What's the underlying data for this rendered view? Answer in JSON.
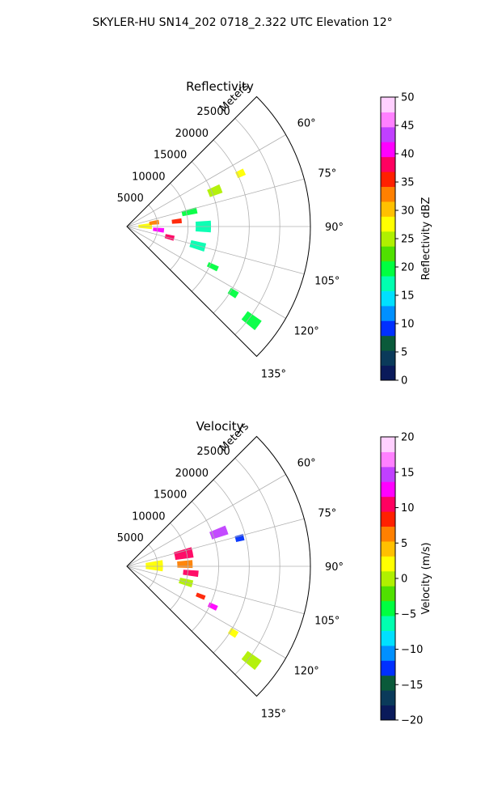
{
  "figure": {
    "suptitle": "SKYLER-HU  SN14_202  0718_2.322 UTC Elevation 12°"
  },
  "chart_data": [
    {
      "type": "heatmap",
      "projection": "polar-sector",
      "title": "Reflectivity",
      "range_label": "Meters",
      "range_ticks": [
        5000,
        10000,
        15000,
        20000,
        25000
      ],
      "range_tick_labels": [
        "5000",
        "10000",
        "15000",
        "20000",
        "25000"
      ],
      "rmax": 30000,
      "azimuth_range_deg": [
        45,
        135
      ],
      "azimuth_ticks": [
        60,
        75,
        90,
        105,
        120,
        135
      ],
      "azimuth_tick_labels": [
        "60°",
        "75°",
        "90°",
        "105°",
        "120°",
        "135°"
      ],
      "grid": true,
      "colorbar": {
        "label": "Reflectivity dBZ",
        "vmin": 0,
        "vmax": 50,
        "ticks": [
          0,
          5,
          10,
          15,
          20,
          25,
          30,
          35,
          40,
          45,
          50
        ],
        "tick_labels": [
          "0",
          "5",
          "10",
          "15",
          "20",
          "25",
          "30",
          "35",
          "40",
          "45",
          "50"
        ],
        "palette": [
          "#0a1a5a",
          "#0a3a5a",
          "#0a5a3a",
          "#0030ff",
          "#0090ff",
          "#00e0ff",
          "#00ffb0",
          "#00ff40",
          "#50e000",
          "#b0f000",
          "#ffff00",
          "#ffc000",
          "#ff8000",
          "#ff2000",
          "#ff0060",
          "#ff00ff",
          "#c040ff",
          "#ff80ff",
          "#ffd0ff"
        ]
      },
      "echo_cells": [
        {
          "az": 89,
          "r": 3000,
          "dr": 2200,
          "daz": 14,
          "value": 27
        },
        {
          "az": 82,
          "r": 4500,
          "dr": 1600,
          "daz": 8,
          "value": 33
        },
        {
          "az": 96,
          "r": 5200,
          "dr": 1800,
          "daz": 7,
          "value": 40
        },
        {
          "az": 104,
          "r": 7200,
          "dr": 1500,
          "daz": 6,
          "value": 37
        },
        {
          "az": 84,
          "r": 8200,
          "dr": 1600,
          "daz": 5,
          "value": 35
        },
        {
          "az": 77,
          "r": 10500,
          "dr": 2500,
          "daz": 5,
          "value": 20
        },
        {
          "az": 68,
          "r": 15500,
          "dr": 2200,
          "daz": 5,
          "value": 24
        },
        {
          "az": 65,
          "r": 20500,
          "dr": 1400,
          "daz": 3,
          "value": 28
        },
        {
          "az": 90,
          "r": 12500,
          "dr": 2500,
          "daz": 8,
          "value": 16
        },
        {
          "az": 105,
          "r": 12000,
          "dr": 2500,
          "daz": 6,
          "value": 18
        },
        {
          "az": 115,
          "r": 15500,
          "dr": 1800,
          "daz": 3,
          "value": 21
        },
        {
          "az": 122,
          "r": 20500,
          "dr": 1500,
          "daz": 3,
          "value": 20
        },
        {
          "az": 127,
          "r": 25500,
          "dr": 2800,
          "daz": 4,
          "value": 21
        }
      ]
    },
    {
      "type": "heatmap",
      "projection": "polar-sector",
      "title": "Velocity",
      "range_label": "Meters",
      "range_ticks": [
        5000,
        10000,
        15000,
        20000,
        25000
      ],
      "range_tick_labels": [
        "5000",
        "10000",
        "15000",
        "20000",
        "25000"
      ],
      "rmax": 30000,
      "azimuth_range_deg": [
        45,
        135
      ],
      "azimuth_ticks": [
        60,
        75,
        90,
        105,
        120,
        135
      ],
      "azimuth_tick_labels": [
        "60°",
        "75°",
        "90°",
        "105°",
        "120°",
        "135°"
      ],
      "grid": true,
      "colorbar": {
        "label": "Velocity (m/s)",
        "vmin": -20,
        "vmax": 20,
        "ticks": [
          -20,
          -15,
          -10,
          -5,
          0,
          5,
          10,
          15,
          20
        ],
        "tick_labels": [
          "−20",
          "−15",
          "−10",
          "−5",
          "0",
          "5",
          "10",
          "15",
          "20"
        ],
        "palette": [
          "#0a1a5a",
          "#0a3a5a",
          "#0a5a3a",
          "#0030ff",
          "#0090ff",
          "#00e0ff",
          "#00ffb0",
          "#00ff40",
          "#50e000",
          "#b0f000",
          "#ffff00",
          "#ffc000",
          "#ff8000",
          "#ff2000",
          "#ff0060",
          "#ff00ff",
          "#c040ff",
          "#ff80ff",
          "#ffd0ff"
        ]
      },
      "echo_cells": [
        {
          "az": 89,
          "r": 4500,
          "dr": 2800,
          "daz": 18,
          "value": 2
        },
        {
          "az": 78,
          "r": 9500,
          "dr": 3000,
          "daz": 9,
          "value": 11
        },
        {
          "az": 88,
          "r": 9500,
          "dr": 2500,
          "daz": 7,
          "value": 6
        },
        {
          "az": 96,
          "r": 10500,
          "dr": 2500,
          "daz": 5,
          "value": 11
        },
        {
          "az": 70,
          "r": 16000,
          "dr": 2800,
          "daz": 5,
          "value": 15
        },
        {
          "az": 76,
          "r": 19000,
          "dr": 1400,
          "daz": 3,
          "value": -12
        },
        {
          "az": 105,
          "r": 10000,
          "dr": 2200,
          "daz": 6,
          "value": 1
        },
        {
          "az": 112,
          "r": 13000,
          "dr": 1500,
          "daz": 3,
          "value": 8
        },
        {
          "az": 115,
          "r": 15500,
          "dr": 1500,
          "daz": 3,
          "value": 12
        },
        {
          "az": 122,
          "r": 20500,
          "dr": 1400,
          "daz": 3,
          "value": 3
        },
        {
          "az": 127,
          "r": 25500,
          "dr": 2800,
          "daz": 4,
          "value": 0
        }
      ]
    }
  ]
}
